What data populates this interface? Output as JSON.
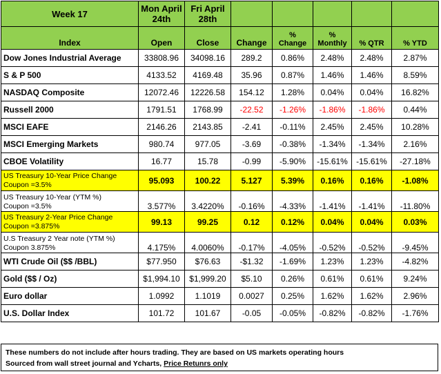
{
  "header": {
    "week": "Week 17",
    "open_date": [
      "Mon April",
      "24th"
    ],
    "close_date": [
      "Fri April",
      "28th"
    ],
    "columns": {
      "index": "Index",
      "open": "Open",
      "close": "Close",
      "change": "Change",
      "pct_change": [
        "%",
        "Change"
      ],
      "monthly": [
        "%",
        "Monthly"
      ],
      "qtr": "% QTR",
      "ytd": "% YTD"
    }
  },
  "rows": [
    {
      "name": [
        "Dow Jones Industrial Average"
      ],
      "open": "33808.96",
      "close": "34098.16",
      "change": "289.2",
      "pct_change": "0.86%",
      "monthly": "2.48%",
      "qtr": "2.48%",
      "ytd": "2.87%"
    },
    {
      "name": [
        "S & P 500"
      ],
      "open": "4133.52",
      "close": "4169.48",
      "change": "35.96",
      "pct_change": "0.87%",
      "monthly": "1.46%",
      "qtr": "1.46%",
      "ytd": "8.59%"
    },
    {
      "name": [
        "NASDAQ Composite"
      ],
      "open": "12072.46",
      "close": "12226.58",
      "change": "154.12",
      "pct_change": "1.28%",
      "monthly": "0.04%",
      "qtr": "0.04%",
      "ytd": "16.82%"
    },
    {
      "name": [
        "Russell 2000"
      ],
      "open": "1791.51",
      "close": "1768.99",
      "change": "-22.52",
      "pct_change": "-1.26%",
      "monthly": "-1.86%",
      "qtr": "-1.86%",
      "ytd": "0.44%"
    },
    {
      "name": [
        "MSCI EAFE"
      ],
      "open": "2146.26",
      "close": "2143.85",
      "change": "-2.41",
      "pct_change": "-0.11%",
      "monthly": "2.45%",
      "qtr": "2.45%",
      "ytd": "10.28%"
    },
    {
      "name": [
        "MSCI Emerging Markets"
      ],
      "open": "980.74",
      "close": "977.05",
      "change": "-3.69",
      "pct_change": "-0.38%",
      "monthly": "-1.34%",
      "qtr": "-1.34%",
      "ytd": "2.16%"
    },
    {
      "name": [
        "CBOE Volatility"
      ],
      "open": "16.77",
      "close": "15.78",
      "change": "-0.99",
      "pct_change": "-5.90%",
      "monthly": "-15.61%",
      "qtr": "-15.61%",
      "ytd": "-27.18%"
    },
    {
      "name": [
        "US Treasury 10-Year Price Change",
        "Coupon =3.5%"
      ],
      "open": "95.093",
      "close": "100.22",
      "change": "5.127",
      "pct_change": "5.39%",
      "monthly": "0.16%",
      "qtr": "0.16%",
      "ytd": "-1.08%"
    },
    {
      "name": [
        "US Treasury 10-Year (YTM %)",
        "Coupon =3.5%"
      ],
      "open": "3.577%",
      "close": "3.4220%",
      "change": "-0.16%",
      "pct_change": "-4.33%",
      "monthly": "-1.41%",
      "qtr": "-1.41%",
      "ytd": "-11.80%"
    },
    {
      "name": [
        "US Treasury 2-Year Price Change",
        "Coupon =3.875%"
      ],
      "open": "99.13",
      "close": "99.25",
      "change": "0.12",
      "pct_change": "0.12%",
      "monthly": "0.04%",
      "qtr": "0.04%",
      "ytd": "0.03%"
    },
    {
      "name": [
        "U.S Treasury 2 Year note (YTM %)",
        "Coupon 3.875%"
      ],
      "open": "4.175%",
      "close": "4.0060%",
      "change": "-0.17%",
      "pct_change": "-4.05%",
      "monthly": "-0.52%",
      "qtr": "-0.52%",
      "ytd": "-9.45%"
    },
    {
      "name": [
        "WTI Crude Oil ($$ /BBL)"
      ],
      "open": "$77.950",
      "close": "$76.63",
      "change": "-$1.32",
      "pct_change": "-1.69%",
      "monthly": "1.23%",
      "qtr": "1.23%",
      "ytd": "-4.82%"
    },
    {
      "name": [
        "Gold  ($$ / Oz)"
      ],
      "open": "$1,994.10",
      "close": "$1,999.20",
      "change": "$5.10",
      "pct_change": "0.26%",
      "monthly": "0.61%",
      "qtr": "0.61%",
      "ytd": "9.24%"
    },
    {
      "name": [
        "Euro dollar"
      ],
      "open": "1.0992",
      "close": "1.1019",
      "change": "0.0027",
      "pct_change": "0.25%",
      "monthly": "1.62%",
      "qtr": "1.62%",
      "ytd": "2.96%"
    },
    {
      "name": [
        "U.S. Dollar Index"
      ],
      "open": "101.72",
      "close": "101.67",
      "change": "-0.05",
      "pct_change": "-0.05%",
      "monthly": "-0.82%",
      "qtr": "-0.82%",
      "ytd": "-1.76%"
    }
  ],
  "footer": {
    "line1": "These numbers do not include after hours trading. They are based on US markets operating hours",
    "line2_prefix": "Sourced from wall street journal and Ycharts, ",
    "line2_link": "Price Retunrs only"
  },
  "colors": {
    "header_bg": "#92d050",
    "highlight_bg": "#ffff00",
    "negative_text": "#ff0000"
  }
}
